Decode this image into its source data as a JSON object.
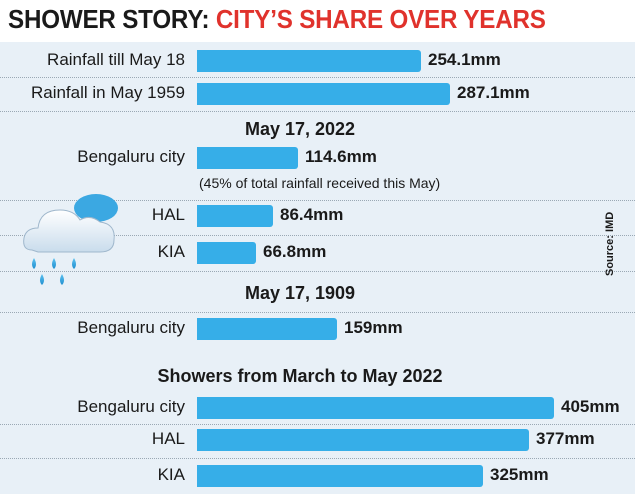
{
  "title": {
    "part1": "SHOWER STORY:",
    "part2": "CITY’S SHARE OVER YEARS"
  },
  "source": "Source: IMD",
  "colors": {
    "bar": "#36aee8",
    "title_accent": "#e0322c",
    "panel": "#e8f0f7"
  },
  "icons": [
    "rain-cloud-icon"
  ],
  "chart_data": {
    "type": "bar",
    "orientation": "horizontal",
    "unit": "mm",
    "title": "SHOWER STORY: CITY’S SHARE OVER YEARS",
    "sections": [
      {
        "heading": "",
        "rows": [
          {
            "label": "Rainfall till May 18",
            "value": 254.1,
            "display": "254.1mm"
          },
          {
            "label": "Rainfall in May 1959",
            "value": 287.1,
            "display": "287.1mm"
          }
        ]
      },
      {
        "heading": "May 17, 2022",
        "note": "(45% of total rainfall received this May)",
        "rows": [
          {
            "label": "Bengaluru city",
            "value": 114.6,
            "display": "114.6mm"
          },
          {
            "label": "HAL",
            "value": 86.4,
            "display": "86.4mm"
          },
          {
            "label": "KIA",
            "value": 66.8,
            "display": "66.8mm"
          }
        ]
      },
      {
        "heading": "May 17, 1909",
        "rows": [
          {
            "label": "Bengaluru city",
            "value": 159,
            "display": "159mm"
          }
        ]
      },
      {
        "heading": "Showers from March to May 2022",
        "rows": [
          {
            "label": "Bengaluru city",
            "value": 405,
            "display": "405mm"
          },
          {
            "label": "HAL",
            "value": 377,
            "display": "377mm"
          },
          {
            "label": "KIA",
            "value": 325,
            "display": "325mm"
          }
        ]
      }
    ]
  }
}
